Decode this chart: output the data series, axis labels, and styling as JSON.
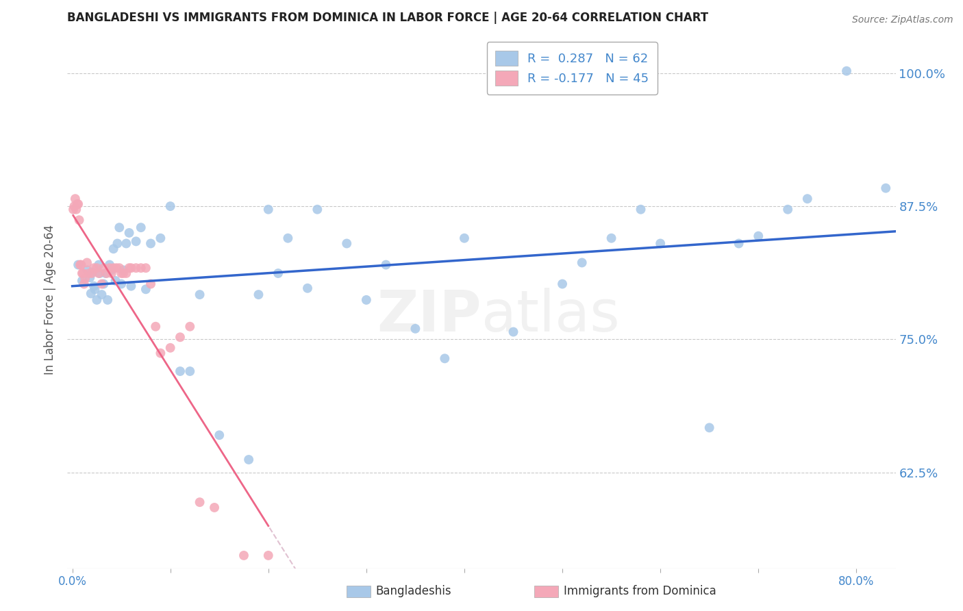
{
  "title": "BANGLADESHI VS IMMIGRANTS FROM DOMINICA IN LABOR FORCE | AGE 20-64 CORRELATION CHART",
  "source": "Source: ZipAtlas.com",
  "ylabel": "In Labor Force | Age 20-64",
  "xlim": [
    -0.005,
    0.84
  ],
  "ylim": [
    0.535,
    1.04
  ],
  "blue_R": 0.287,
  "blue_N": 62,
  "pink_R": -0.177,
  "pink_N": 45,
  "blue_color": "#A8C8E8",
  "pink_color": "#F4A8B8",
  "blue_line_color": "#3366CC",
  "pink_line_color": "#EE6688",
  "pink_dash_color": "#DDBBCC",
  "background_color": "#FFFFFF",
  "grid_color": "#BBBBBB",
  "text_color_blue": "#4488CC",
  "legend_label_blue": "Bangladeshis",
  "legend_label_pink": "Immigrants from Dominica",
  "blue_x": [
    0.006,
    0.01,
    0.015,
    0.018,
    0.019,
    0.02,
    0.022,
    0.023,
    0.025,
    0.027,
    0.028,
    0.03,
    0.032,
    0.034,
    0.036,
    0.038,
    0.04,
    0.042,
    0.044,
    0.046,
    0.048,
    0.05,
    0.052,
    0.055,
    0.058,
    0.06,
    0.065,
    0.07,
    0.075,
    0.08,
    0.09,
    0.1,
    0.11,
    0.12,
    0.13,
    0.15,
    0.18,
    0.19,
    0.2,
    0.21,
    0.22,
    0.24,
    0.25,
    0.28,
    0.3,
    0.32,
    0.35,
    0.38,
    0.4,
    0.45,
    0.5,
    0.52,
    0.55,
    0.58,
    0.6,
    0.65,
    0.68,
    0.7,
    0.73,
    0.75,
    0.79,
    0.83
  ],
  "blue_y": [
    0.82,
    0.805,
    0.815,
    0.808,
    0.793,
    0.813,
    0.8,
    0.797,
    0.787,
    0.82,
    0.812,
    0.792,
    0.802,
    0.812,
    0.787,
    0.82,
    0.815,
    0.835,
    0.805,
    0.84,
    0.855,
    0.802,
    0.815,
    0.84,
    0.85,
    0.8,
    0.842,
    0.855,
    0.797,
    0.84,
    0.845,
    0.875,
    0.72,
    0.72,
    0.792,
    0.66,
    0.637,
    0.792,
    0.872,
    0.812,
    0.845,
    0.798,
    0.872,
    0.84,
    0.787,
    0.82,
    0.76,
    0.732,
    0.845,
    0.757,
    0.802,
    0.822,
    0.845,
    0.872,
    0.84,
    0.667,
    0.84,
    0.847,
    0.872,
    0.882,
    1.002,
    0.892
  ],
  "pink_x": [
    0.001,
    0.002,
    0.003,
    0.004,
    0.005,
    0.006,
    0.007,
    0.008,
    0.009,
    0.01,
    0.011,
    0.012,
    0.013,
    0.015,
    0.017,
    0.02,
    0.022,
    0.025,
    0.027,
    0.03,
    0.032,
    0.035,
    0.038,
    0.04,
    0.042,
    0.045,
    0.048,
    0.05,
    0.052,
    0.055,
    0.058,
    0.06,
    0.065,
    0.07,
    0.075,
    0.08,
    0.085,
    0.09,
    0.1,
    0.11,
    0.12,
    0.13,
    0.145,
    0.175,
    0.2
  ],
  "pink_y": [
    0.872,
    0.875,
    0.882,
    0.872,
    0.877,
    0.877,
    0.862,
    0.82,
    0.82,
    0.812,
    0.812,
    0.802,
    0.807,
    0.822,
    0.812,
    0.812,
    0.817,
    0.817,
    0.812,
    0.802,
    0.817,
    0.812,
    0.817,
    0.812,
    0.817,
    0.817,
    0.817,
    0.812,
    0.812,
    0.812,
    0.817,
    0.817,
    0.817,
    0.817,
    0.817,
    0.802,
    0.762,
    0.737,
    0.742,
    0.752,
    0.762,
    0.597,
    0.592,
    0.547,
    0.547
  ]
}
